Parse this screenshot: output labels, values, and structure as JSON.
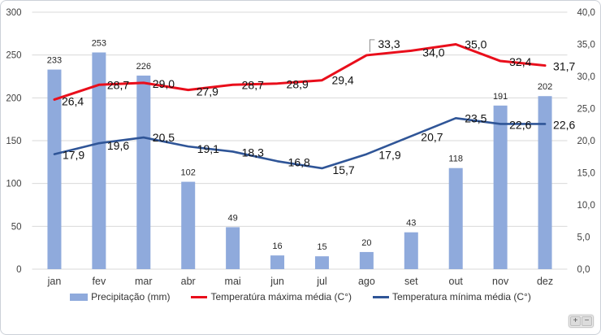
{
  "chart_data": {
    "type": "combo",
    "title": "",
    "categories": [
      "jan",
      "fev",
      "mar",
      "abr",
      "mai",
      "jun",
      "jul",
      "ago",
      "set",
      "out",
      "nov",
      "dez"
    ],
    "series": [
      {
        "name": "Precipitação (mm)",
        "type": "bar",
        "axis": "left",
        "color": "#8faadc",
        "values": [
          233,
          253,
          226,
          102,
          49,
          16,
          15,
          20,
          43,
          118,
          191,
          202
        ]
      },
      {
        "name": "Temperatúra máxima média (C°)",
        "type": "line",
        "axis": "right",
        "color": "#e90e1b",
        "values": [
          26.4,
          28.7,
          29.0,
          27.9,
          28.7,
          28.9,
          29.4,
          33.3,
          34.0,
          35.0,
          32.4,
          31.7
        ]
      },
      {
        "name": "Temperatura mínima média (C°)",
        "type": "line",
        "axis": "right",
        "color": "#2f5597",
        "values": [
          17.9,
          19.6,
          20.5,
          19.1,
          18.3,
          16.8,
          15.7,
          17.9,
          20.7,
          23.5,
          22.6,
          22.6
        ]
      }
    ],
    "left_axis": {
      "min": 0,
      "max": 300,
      "step": 50,
      "tick_labels": [
        "300",
        "250",
        "200",
        "150",
        "100",
        "50",
        "0"
      ]
    },
    "right_axis": {
      "min": 0,
      "max": 40,
      "step": 5,
      "tick_labels": [
        "40,0",
        "35,0",
        "30,0",
        "25,0",
        "20,0",
        "15,0",
        "10,0",
        "5,0",
        "0,0"
      ]
    },
    "grid": "horizontal",
    "grid_color": "#d9d9d9",
    "legend_position": "bottom",
    "annotation": {
      "callout_point": "ago",
      "callout_series": "Temperatúra máxima média (C°)",
      "label": "33,3"
    }
  },
  "zoom_control": {
    "zoom_in": "+",
    "zoom_out": "−"
  }
}
